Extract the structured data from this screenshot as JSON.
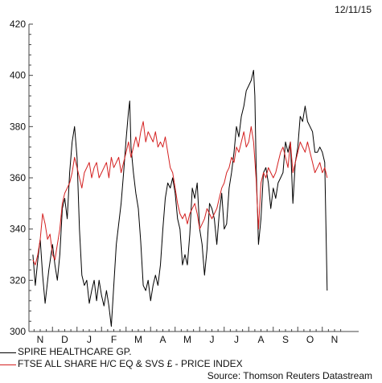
{
  "date_label": "12/11/15",
  "source": "Source: Thomson Reuters Datastream",
  "colors": {
    "spire": "#000000",
    "ftse": "#d42020",
    "axis": "#444444"
  },
  "chart_data": {
    "type": "line",
    "ylim": [
      300,
      420
    ],
    "yticks": [
      300,
      320,
      340,
      360,
      380,
      400,
      420
    ],
    "x_categories": [
      "N",
      "D",
      "J",
      "F",
      "M",
      "A",
      "M",
      "J",
      "J",
      "A",
      "S",
      "O",
      "N"
    ],
    "x_range": [
      0,
      12.8
    ],
    "series": [
      {
        "name": "SPIRE HEALTHCARE GP.",
        "color": "#000000",
        "points": [
          [
            -0.3,
            330
          ],
          [
            -0.2,
            318
          ],
          [
            -0.1,
            328
          ],
          [
            0.0,
            336
          ],
          [
            0.1,
            322
          ],
          [
            0.2,
            311
          ],
          [
            0.35,
            324
          ],
          [
            0.5,
            334
          ],
          [
            0.6,
            326
          ],
          [
            0.7,
            320
          ],
          [
            0.8,
            330
          ],
          [
            0.9,
            348
          ],
          [
            1.0,
            352
          ],
          [
            1.1,
            344
          ],
          [
            1.2,
            362
          ],
          [
            1.3,
            374
          ],
          [
            1.4,
            380
          ],
          [
            1.5,
            368
          ],
          [
            1.6,
            340
          ],
          [
            1.7,
            322
          ],
          [
            1.8,
            318
          ],
          [
            1.9,
            320
          ],
          [
            2.0,
            311
          ],
          [
            2.1,
            316
          ],
          [
            2.2,
            320
          ],
          [
            2.3,
            312
          ],
          [
            2.4,
            320
          ],
          [
            2.5,
            314
          ],
          [
            2.6,
            310
          ],
          [
            2.7,
            316
          ],
          [
            2.8,
            310
          ],
          [
            2.9,
            302
          ],
          [
            3.0,
            318
          ],
          [
            3.1,
            334
          ],
          [
            3.2,
            342
          ],
          [
            3.3,
            350
          ],
          [
            3.4,
            362
          ],
          [
            3.5,
            375
          ],
          [
            3.6,
            386
          ],
          [
            3.65,
            390
          ],
          [
            3.7,
            372
          ],
          [
            3.8,
            362
          ],
          [
            3.9,
            354
          ],
          [
            4.0,
            348
          ],
          [
            4.1,
            335
          ],
          [
            4.2,
            318
          ],
          [
            4.3,
            316
          ],
          [
            4.4,
            320
          ],
          [
            4.5,
            312
          ],
          [
            4.6,
            318
          ],
          [
            4.7,
            322
          ],
          [
            4.8,
            318
          ],
          [
            4.9,
            326
          ],
          [
            5.0,
            340
          ],
          [
            5.1,
            352
          ],
          [
            5.2,
            358
          ],
          [
            5.3,
            356
          ],
          [
            5.4,
            360
          ],
          [
            5.5,
            354
          ],
          [
            5.6,
            344
          ],
          [
            5.7,
            340
          ],
          [
            5.8,
            326
          ],
          [
            5.9,
            330
          ],
          [
            6.0,
            326
          ],
          [
            6.1,
            338
          ],
          [
            6.2,
            356
          ],
          [
            6.3,
            352
          ],
          [
            6.4,
            358
          ],
          [
            6.5,
            340
          ],
          [
            6.6,
            334
          ],
          [
            6.7,
            322
          ],
          [
            6.8,
            332
          ],
          [
            6.9,
            350
          ],
          [
            7.0,
            348
          ],
          [
            7.1,
            344
          ],
          [
            7.2,
            334
          ],
          [
            7.3,
            346
          ],
          [
            7.4,
            354
          ],
          [
            7.5,
            340
          ],
          [
            7.6,
            342
          ],
          [
            7.7,
            356
          ],
          [
            7.8,
            362
          ],
          [
            7.9,
            370
          ],
          [
            8.0,
            380
          ],
          [
            8.1,
            376
          ],
          [
            8.2,
            384
          ],
          [
            8.3,
            388
          ],
          [
            8.4,
            394
          ],
          [
            8.5,
            396
          ],
          [
            8.6,
            398
          ],
          [
            8.7,
            402
          ],
          [
            8.75,
            392
          ],
          [
            8.8,
            366
          ],
          [
            8.9,
            334
          ],
          [
            9.0,
            344
          ],
          [
            9.1,
            362
          ],
          [
            9.2,
            364
          ],
          [
            9.3,
            358
          ],
          [
            9.4,
            348
          ],
          [
            9.5,
            356
          ],
          [
            9.6,
            352
          ],
          [
            9.7,
            358
          ],
          [
            9.8,
            360
          ],
          [
            9.9,
            362
          ],
          [
            10.0,
            374
          ],
          [
            10.1,
            370
          ],
          [
            10.2,
            374
          ],
          [
            10.3,
            350
          ],
          [
            10.4,
            366
          ],
          [
            10.5,
            372
          ],
          [
            10.6,
            384
          ],
          [
            10.7,
            382
          ],
          [
            10.8,
            388
          ],
          [
            10.9,
            382
          ],
          [
            11.0,
            380
          ],
          [
            11.1,
            378
          ],
          [
            11.2,
            370
          ],
          [
            11.3,
            370
          ],
          [
            11.4,
            372
          ],
          [
            11.5,
            370
          ],
          [
            11.6,
            366
          ],
          [
            11.7,
            316
          ]
        ]
      },
      {
        "name": "FTSE ALL SHARE H/C EQ & SVS £ - PRICE INDEX",
        "color": "#d42020",
        "points": [
          [
            -0.3,
            328
          ],
          [
            -0.2,
            326
          ],
          [
            -0.1,
            330
          ],
          [
            0.0,
            336
          ],
          [
            0.1,
            346
          ],
          [
            0.2,
            342
          ],
          [
            0.3,
            336
          ],
          [
            0.4,
            338
          ],
          [
            0.5,
            330
          ],
          [
            0.6,
            328
          ],
          [
            0.7,
            334
          ],
          [
            0.8,
            340
          ],
          [
            0.9,
            350
          ],
          [
            1.0,
            354
          ],
          [
            1.1,
            356
          ],
          [
            1.2,
            358
          ],
          [
            1.3,
            362
          ],
          [
            1.4,
            368
          ],
          [
            1.5,
            364
          ],
          [
            1.6,
            360
          ],
          [
            1.7,
            356
          ],
          [
            1.8,
            362
          ],
          [
            1.9,
            364
          ],
          [
            2.0,
            366
          ],
          [
            2.1,
            360
          ],
          [
            2.2,
            364
          ],
          [
            2.3,
            366
          ],
          [
            2.4,
            360
          ],
          [
            2.5,
            362
          ],
          [
            2.6,
            364
          ],
          [
            2.7,
            366
          ],
          [
            2.8,
            360
          ],
          [
            2.9,
            368
          ],
          [
            3.0,
            364
          ],
          [
            3.1,
            366
          ],
          [
            3.2,
            368
          ],
          [
            3.3,
            362
          ],
          [
            3.4,
            366
          ],
          [
            3.5,
            370
          ],
          [
            3.6,
            374
          ],
          [
            3.7,
            368
          ],
          [
            3.8,
            372
          ],
          [
            3.9,
            376
          ],
          [
            4.0,
            372
          ],
          [
            4.1,
            378
          ],
          [
            4.2,
            382
          ],
          [
            4.3,
            374
          ],
          [
            4.4,
            378
          ],
          [
            4.5,
            376
          ],
          [
            4.6,
            374
          ],
          [
            4.7,
            378
          ],
          [
            4.8,
            372
          ],
          [
            4.9,
            374
          ],
          [
            5.0,
            372
          ],
          [
            5.1,
            376
          ],
          [
            5.2,
            370
          ],
          [
            5.3,
            364
          ],
          [
            5.4,
            362
          ],
          [
            5.5,
            356
          ],
          [
            5.6,
            350
          ],
          [
            5.7,
            346
          ],
          [
            5.8,
            344
          ],
          [
            5.9,
            346
          ],
          [
            6.0,
            342
          ],
          [
            6.1,
            346
          ],
          [
            6.2,
            348
          ],
          [
            6.3,
            350
          ],
          [
            6.4,
            346
          ],
          [
            6.5,
            340
          ],
          [
            6.6,
            342
          ],
          [
            6.7,
            344
          ],
          [
            6.8,
            348
          ],
          [
            6.9,
            346
          ],
          [
            7.0,
            344
          ],
          [
            7.1,
            346
          ],
          [
            7.2,
            348
          ],
          [
            7.3,
            352
          ],
          [
            7.4,
            356
          ],
          [
            7.5,
            358
          ],
          [
            7.6,
            362
          ],
          [
            7.7,
            364
          ],
          [
            7.8,
            368
          ],
          [
            7.9,
            366
          ],
          [
            8.0,
            372
          ],
          [
            8.1,
            370
          ],
          [
            8.2,
            374
          ],
          [
            8.3,
            378
          ],
          [
            8.4,
            372
          ],
          [
            8.5,
            374
          ],
          [
            8.6,
            380
          ],
          [
            8.7,
            374
          ],
          [
            8.8,
            360
          ],
          [
            8.9,
            340
          ],
          [
            9.0,
            358
          ],
          [
            9.1,
            362
          ],
          [
            9.2,
            360
          ],
          [
            9.3,
            364
          ],
          [
            9.4,
            362
          ],
          [
            9.5,
            360
          ],
          [
            9.6,
            362
          ],
          [
            9.7,
            366
          ],
          [
            9.8,
            370
          ],
          [
            9.9,
            372
          ],
          [
            10.0,
            368
          ],
          [
            10.1,
            364
          ],
          [
            10.2,
            374
          ],
          [
            10.3,
            362
          ],
          [
            10.4,
            366
          ],
          [
            10.5,
            370
          ],
          [
            10.6,
            374
          ],
          [
            10.7,
            372
          ],
          [
            10.8,
            370
          ],
          [
            10.9,
            374
          ],
          [
            11.0,
            370
          ],
          [
            11.1,
            366
          ],
          [
            11.2,
            362
          ],
          [
            11.3,
            364
          ],
          [
            11.4,
            366
          ],
          [
            11.5,
            362
          ],
          [
            11.6,
            364
          ],
          [
            11.7,
            360
          ]
        ]
      }
    ]
  }
}
